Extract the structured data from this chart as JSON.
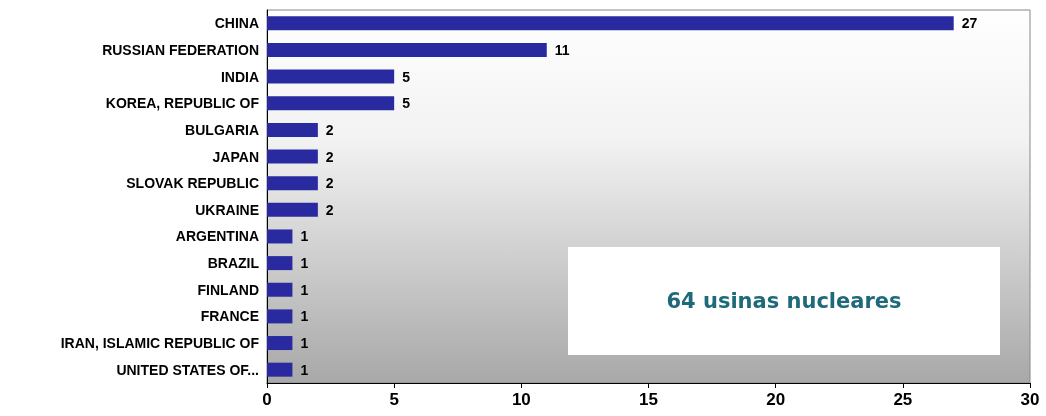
{
  "chart_data": {
    "type": "bar",
    "orientation": "horizontal",
    "categories": [
      "CHINA",
      "RUSSIAN FEDERATION",
      "INDIA",
      "KOREA, REPUBLIC OF",
      "BULGARIA",
      "JAPAN",
      "SLOVAK REPUBLIC",
      "UKRAINE",
      "ARGENTINA",
      "BRAZIL",
      "FINLAND",
      "FRANCE",
      "IRAN, ISLAMIC REPUBLIC OF",
      "UNITED STATES OF..."
    ],
    "values": [
      27,
      11,
      5,
      5,
      2,
      2,
      2,
      2,
      1,
      1,
      1,
      1,
      1,
      1
    ],
    "color": "#2a2aa0",
    "xlim": [
      0,
      30
    ],
    "xticks": [
      0,
      5,
      10,
      15,
      20,
      25,
      30
    ],
    "grid": false,
    "data_labels": true,
    "annotations": [
      "64 usinas nucleares"
    ]
  }
}
